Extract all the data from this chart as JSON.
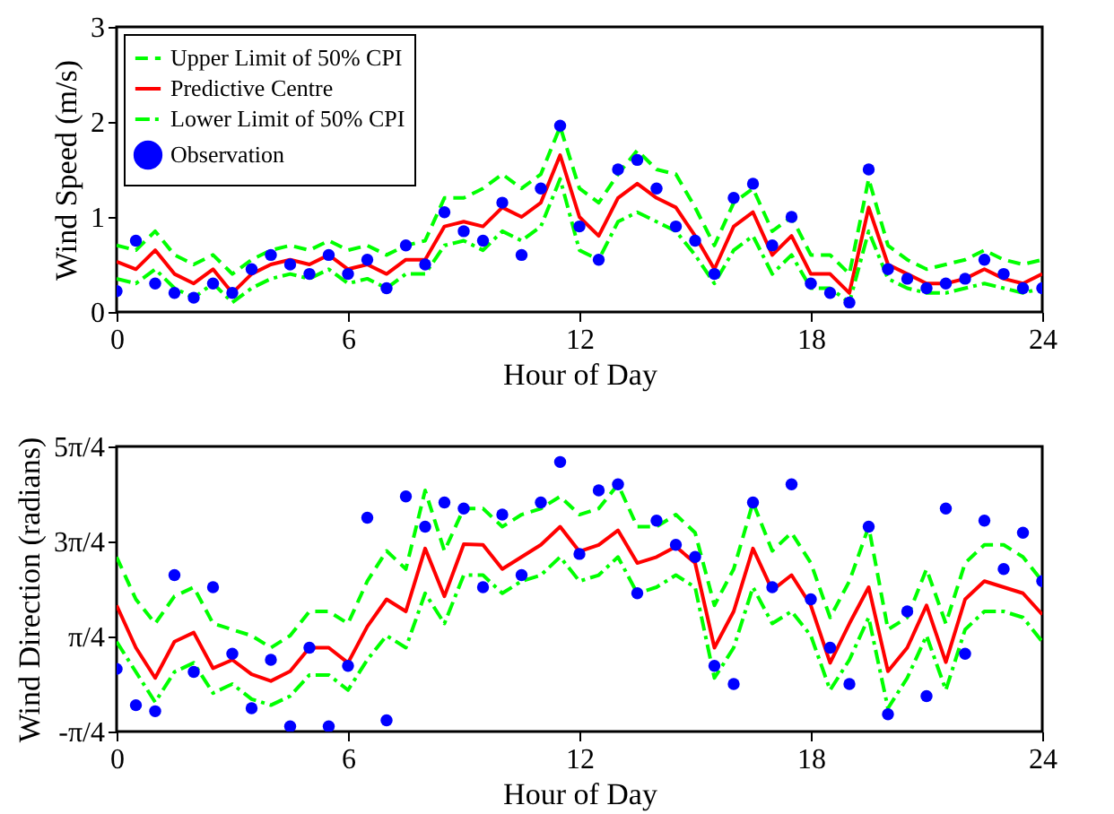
{
  "chart_data": [
    {
      "type": "line",
      "xlabel": "Hour of Day",
      "ylabel": "Wind Speed (m/s)",
      "x": [
        0,
        0.5,
        1,
        1.5,
        2,
        2.5,
        3,
        3.5,
        4,
        4.5,
        5,
        5.5,
        6,
        6.5,
        7,
        7.5,
        8,
        8.5,
        9,
        9.5,
        10,
        10.5,
        11,
        11.5,
        12,
        12.5,
        13,
        13.5,
        14,
        14.5,
        15,
        15.5,
        16,
        16.5,
        17,
        17.5,
        18,
        18.5,
        19,
        19.5,
        20,
        20.5,
        21,
        21.5,
        22,
        22.5,
        23,
        23.5,
        24
      ],
      "xlim": [
        0,
        24
      ],
      "xticks": [
        0,
        6,
        12,
        18,
        24
      ],
      "ylim": [
        0,
        3
      ],
      "yticks": [
        0,
        1,
        2,
        3
      ],
      "legend": "top left",
      "series": [
        {
          "name": "Upper Limit of 50% CPI",
          "color": "#00ff00",
          "line_style": "dashed",
          "values": [
            0.7,
            0.65,
            0.85,
            0.6,
            0.5,
            0.6,
            0.4,
            0.55,
            0.65,
            0.7,
            0.65,
            0.75,
            0.65,
            0.7,
            0.6,
            0.7,
            0.75,
            1.2,
            1.2,
            1.3,
            1.45,
            1.3,
            1.45,
            1.95,
            1.3,
            1.15,
            1.45,
            1.7,
            1.5,
            1.45,
            1.1,
            0.7,
            1.15,
            1.3,
            0.85,
            1.0,
            0.6,
            0.6,
            0.4,
            1.4,
            0.7,
            0.55,
            0.45,
            0.5,
            0.55,
            0.65,
            0.55,
            0.5,
            0.55
          ]
        },
        {
          "name": "Predictive Centre",
          "color": "#ff0000",
          "line_style": "solid",
          "values": [
            0.53,
            0.45,
            0.65,
            0.4,
            0.3,
            0.45,
            0.2,
            0.4,
            0.5,
            0.55,
            0.5,
            0.6,
            0.45,
            0.5,
            0.4,
            0.55,
            0.55,
            0.9,
            0.95,
            0.9,
            1.1,
            1.0,
            1.15,
            1.65,
            1.0,
            0.8,
            1.2,
            1.35,
            1.2,
            1.1,
            0.8,
            0.45,
            0.9,
            1.05,
            0.6,
            0.8,
            0.4,
            0.4,
            0.2,
            1.1,
            0.5,
            0.4,
            0.3,
            0.3,
            0.35,
            0.45,
            0.35,
            0.3,
            0.4
          ]
        },
        {
          "name": "Lower Limit of 50% CPI",
          "color": "#00ff00",
          "line_style": "dashdot",
          "values": [
            0.35,
            0.3,
            0.45,
            0.25,
            0.15,
            0.3,
            0.1,
            0.25,
            0.35,
            0.4,
            0.35,
            0.45,
            0.3,
            0.35,
            0.25,
            0.4,
            0.4,
            0.7,
            0.75,
            0.65,
            0.85,
            0.75,
            0.9,
            1.4,
            0.65,
            0.55,
            0.95,
            1.05,
            0.95,
            0.85,
            0.6,
            0.3,
            0.65,
            0.8,
            0.4,
            0.6,
            0.25,
            0.25,
            0.1,
            0.85,
            0.35,
            0.25,
            0.2,
            0.2,
            0.25,
            0.3,
            0.25,
            0.2,
            0.25
          ]
        },
        {
          "name": "Observation",
          "type": "scatter",
          "marker": "circle",
          "color": "#0000ff",
          "values": [
            0.22,
            0.75,
            0.3,
            0.2,
            0.15,
            0.3,
            0.2,
            0.45,
            0.6,
            0.5,
            0.4,
            0.6,
            0.4,
            0.55,
            0.25,
            0.7,
            0.5,
            1.05,
            0.85,
            0.75,
            1.15,
            0.6,
            1.3,
            1.96,
            0.9,
            0.55,
            1.5,
            1.6,
            1.3,
            0.9,
            0.75,
            0.4,
            1.2,
            1.35,
            0.7,
            1.0,
            0.3,
            0.2,
            0.1,
            1.5,
            0.45,
            0.35,
            0.25,
            0.3,
            0.35,
            0.55,
            0.4,
            0.25,
            0.25
          ]
        }
      ]
    },
    {
      "type": "line",
      "xlabel": "Hour of Day",
      "ylabel": "Wind Direction (radians)",
      "x": [
        0,
        0.5,
        1,
        1.5,
        2,
        2.5,
        3,
        3.5,
        4,
        4.5,
        5,
        5.5,
        6,
        6.5,
        7,
        7.5,
        8,
        8.5,
        9,
        9.5,
        10,
        10.5,
        11,
        11.5,
        12,
        12.5,
        13,
        13.5,
        14,
        14.5,
        15,
        15.5,
        16,
        16.5,
        17,
        17.5,
        18,
        18.5,
        19,
        19.5,
        20,
        20.5,
        21,
        21.5,
        22,
        22.5,
        23,
        23.5,
        24
      ],
      "xlim": [
        0,
        24
      ],
      "xticks": [
        0,
        6,
        12,
        18,
        24
      ],
      "ylim": [
        -0.7854,
        3.927
      ],
      "yticks": [
        {
          "value": -0.7854,
          "label": "-π/4"
        },
        {
          "value": 0.7854,
          "label": "π/4"
        },
        {
          "value": 2.3562,
          "label": "3π/4"
        },
        {
          "value": 3.927,
          "label": "5π/4"
        }
      ],
      "series": [
        {
          "color": "#00ff00",
          "line_style": "dashed",
          "values": [
            2.1,
            1.4,
            1.0,
            1.45,
            1.6,
            1.0,
            0.9,
            0.8,
            0.6,
            0.8,
            1.2,
            1.2,
            1.0,
            1.7,
            2.2,
            1.9,
            3.2,
            2.2,
            2.9,
            2.9,
            2.6,
            2.8,
            2.9,
            3.1,
            2.8,
            2.9,
            3.3,
            2.6,
            2.6,
            2.8,
            2.5,
            1.3,
            1.9,
            3.0,
            2.2,
            2.5,
            2.0,
            1.1,
            1.7,
            2.6,
            0.9,
            1.1,
            1.9,
            1.0,
            2.0,
            2.3,
            2.3,
            2.1,
            1.7
          ]
        },
        {
          "color": "#ff0000",
          "line_style": "solid",
          "values": [
            1.3,
            0.6,
            0.1,
            0.7,
            0.85,
            0.26,
            0.4,
            0.16,
            0.05,
            0.21,
            0.6,
            0.6,
            0.35,
            0.95,
            1.4,
            1.2,
            2.24,
            1.45,
            2.31,
            2.3,
            1.9,
            2.1,
            2.3,
            2.6,
            2.19,
            2.3,
            2.54,
            2.0,
            2.1,
            2.27,
            2.0,
            0.6,
            1.2,
            2.24,
            1.55,
            1.8,
            1.3,
            0.35,
            1.0,
            1.6,
            0.21,
            0.6,
            1.3,
            0.36,
            1.4,
            1.7,
            1.6,
            1.5,
            1.15
          ]
        },
        {
          "color": "#00ff00",
          "line_style": "dashdot",
          "values": [
            0.7,
            0.2,
            -0.3,
            0.2,
            0.35,
            -0.15,
            0.0,
            -0.25,
            -0.35,
            -0.2,
            0.15,
            0.15,
            -0.1,
            0.4,
            0.8,
            0.6,
            1.5,
            1.0,
            1.8,
            1.8,
            1.5,
            1.7,
            1.8,
            2.1,
            1.7,
            1.8,
            2.1,
            1.5,
            1.6,
            1.8,
            1.6,
            0.1,
            0.6,
            1.6,
            1.0,
            1.2,
            0.8,
            -0.1,
            0.4,
            1.1,
            -0.4,
            0.1,
            0.8,
            -0.1,
            0.9,
            1.2,
            1.2,
            1.1,
            0.7
          ]
        },
        {
          "type": "scatter",
          "marker": "circle",
          "color": "#0000ff",
          "values": [
            0.25,
            -0.35,
            -0.45,
            1.8,
            0.2,
            1.6,
            0.5,
            -0.4,
            0.4,
            -0.7,
            0.6,
            -0.7,
            0.3,
            2.75,
            -0.6,
            3.1,
            2.6,
            3.0,
            2.9,
            1.6,
            2.8,
            1.8,
            3.0,
            3.67,
            2.15,
            3.2,
            3.3,
            1.5,
            2.7,
            2.3,
            2.1,
            0.3,
            0.0,
            3.0,
            1.6,
            3.3,
            1.4,
            0.6,
            0.0,
            2.6,
            -0.5,
            1.2,
            -0.2,
            2.9,
            0.5,
            2.7,
            1.9,
            2.5,
            1.7
          ]
        }
      ]
    }
  ]
}
